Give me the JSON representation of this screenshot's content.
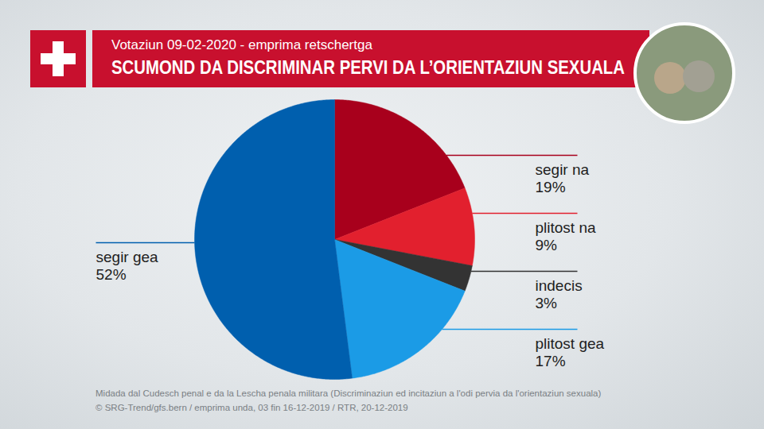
{
  "chart_data": {
    "type": "pie",
    "subtitle": "Votaziun 09-02-2020 - emprima retschertga",
    "title": "SCUMOND DA DISCRIMINAR PERVI DA L’ORIENTAZIUN SEXUALA",
    "categories": [
      "segir na",
      "plitost na",
      "indecis",
      "plitost gea",
      "segir gea"
    ],
    "values": [
      19,
      9,
      3,
      17,
      52
    ],
    "value_labels": [
      "19%",
      "9%",
      "3%",
      "17%",
      "52%"
    ],
    "colors": [
      "#a8001c",
      "#e2202e",
      "#333333",
      "#1b9be6",
      "#005fae"
    ],
    "data_labels": true,
    "annotations": [
      "Midada dal Cudesch penal e da la Lescha penala militara (Discriminaziun ed incitaziun a l'odi pervia da l'orientaziun sexuala)",
      "© SRG-Trend/gfs.bern  /  emprima unda, 03 fin 16-12-2019  /  RTR, 20-12-2019"
    ]
  }
}
